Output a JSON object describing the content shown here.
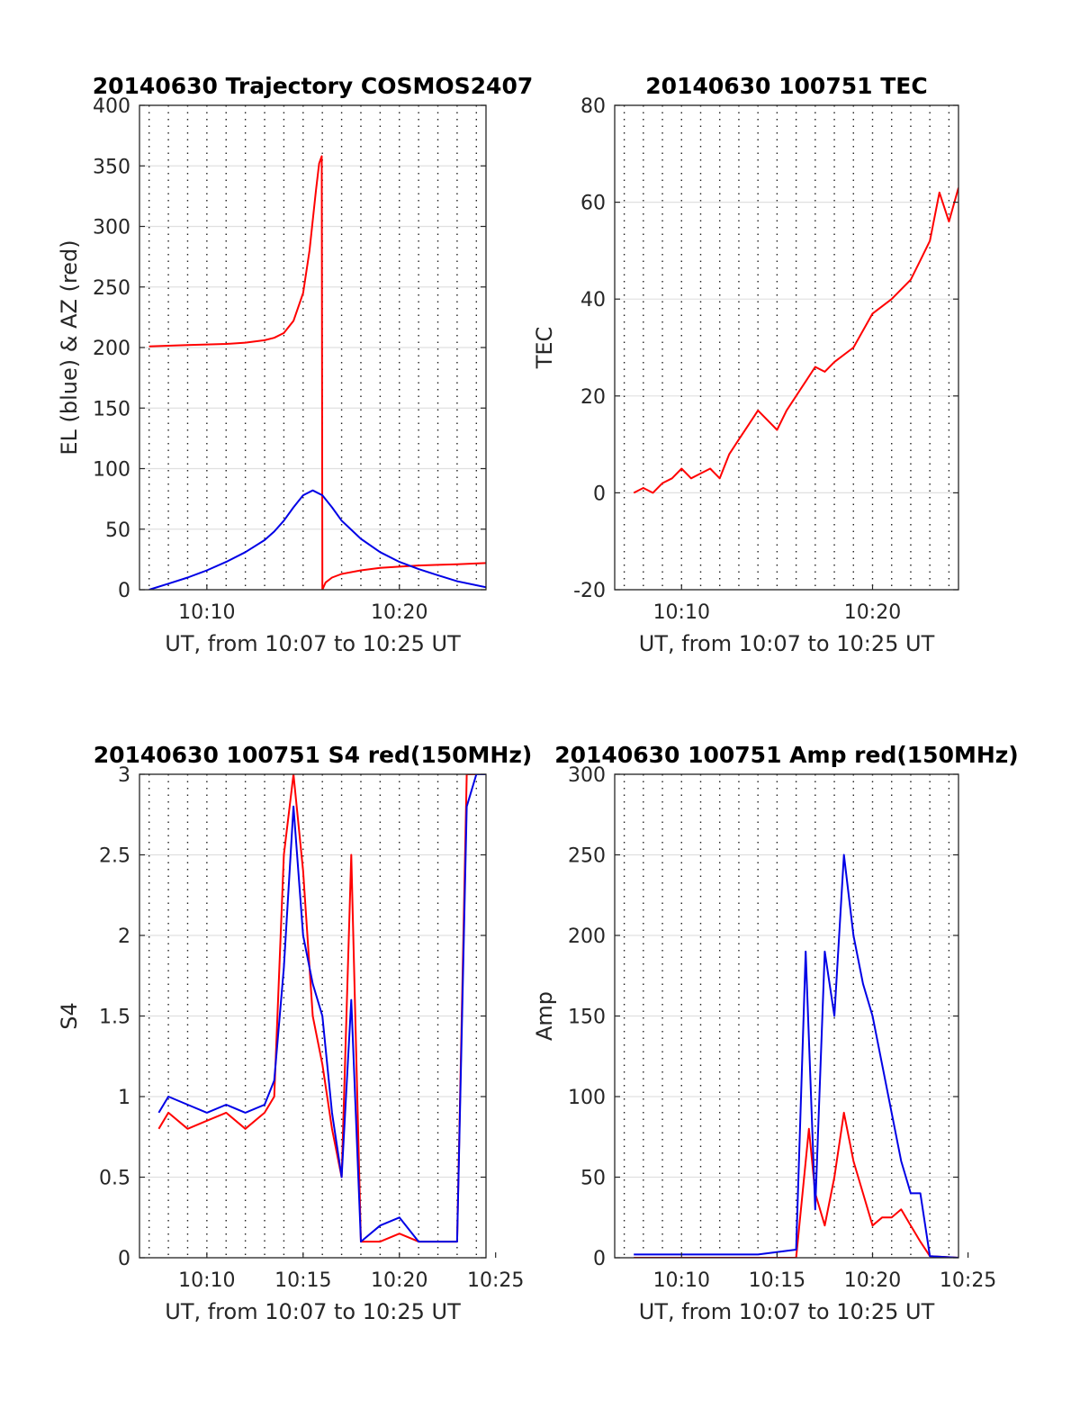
{
  "colors": {
    "red": "#ff0000",
    "blue": "#0000e6",
    "grid_h": "#e0e0e0",
    "grid_v": "#222222",
    "axis": "#262626"
  },
  "chart_data": [
    {
      "id": "trajectory",
      "type": "line",
      "title": "20140630 Trajectory COSMOS2407",
      "xlabel": "UT, from 10:07 to 10:25 UT",
      "ylabel": "EL (blue) & AZ (red)",
      "xlim": [
        "10:06:30",
        "10:24:30"
      ],
      "ylim": [
        0,
        400
      ],
      "yticks": [
        0,
        50,
        100,
        150,
        200,
        250,
        300,
        350,
        400
      ],
      "xticks": [
        {
          "t": "10:10",
          "label": "10:10"
        },
        {
          "t": "10:20",
          "label": "10:20"
        }
      ],
      "grid": true,
      "series": [
        {
          "color": "red",
          "x": [
            "10:07:00",
            "10:08",
            "10:09",
            "10:10",
            "10:11",
            "10:12",
            "10:13",
            "10:13:30",
            "10:14",
            "10:14:30",
            "10:15",
            "10:15:20",
            "10:15:40",
            "10:15:50",
            "10:15:58",
            "10:16:00",
            "10:16:10",
            "10:16:30",
            "10:17",
            "10:18",
            "10:19",
            "10:20",
            "10:21",
            "10:22",
            "10:23",
            "10:24:30"
          ],
          "values": [
            201,
            201.5,
            202,
            202.5,
            203,
            204,
            206,
            208,
            212,
            222,
            245,
            280,
            330,
            352,
            358,
            0,
            6,
            10,
            13,
            16,
            18,
            19,
            20,
            20.5,
            21,
            22
          ]
        },
        {
          "color": "blue",
          "x": [
            "10:07:00",
            "10:08",
            "10:09",
            "10:10",
            "10:11",
            "10:12",
            "10:13",
            "10:13:30",
            "10:14",
            "10:14:30",
            "10:15",
            "10:15:30",
            "10:16",
            "10:16:30",
            "10:17",
            "10:18",
            "10:19",
            "10:20",
            "10:21",
            "10:22",
            "10:23",
            "10:24:30"
          ],
          "values": [
            0,
            5,
            10,
            16,
            23,
            31,
            41,
            48,
            57,
            68,
            78,
            82,
            78,
            68,
            57,
            42,
            31,
            23,
            17,
            12,
            7,
            2
          ]
        }
      ]
    },
    {
      "id": "tec",
      "type": "line",
      "title": "20140630 100751 TEC",
      "xlabel": "UT, from 10:07 to 10:25 UT",
      "ylabel": "TEC",
      "xlim": [
        "10:06:30",
        "10:24:30"
      ],
      "ylim": [
        -20,
        80
      ],
      "yticks": [
        -20,
        0,
        20,
        40,
        60,
        80
      ],
      "xticks": [
        {
          "t": "10:10",
          "label": "10:10"
        },
        {
          "t": "10:20",
          "label": "10:20"
        }
      ],
      "grid": true,
      "series": [
        {
          "color": "red",
          "x": [
            "10:07:30",
            "10:08",
            "10:08:30",
            "10:09",
            "10:09:30",
            "10:10",
            "10:10:30",
            "10:11",
            "10:11:30",
            "10:12",
            "10:12:30",
            "10:13",
            "10:13:30",
            "10:14",
            "10:14:30",
            "10:15",
            "10:15:30",
            "10:16",
            "10:16:30",
            "10:17",
            "10:17:30",
            "10:18",
            "10:19",
            "10:20",
            "10:21",
            "10:22",
            "10:22:30",
            "10:23",
            "10:23:30",
            "10:24",
            "10:24:30"
          ],
          "values": [
            0,
            1,
            0,
            2,
            3,
            5,
            3,
            4,
            5,
            3,
            8,
            11,
            14,
            17,
            15,
            13,
            17,
            20,
            23,
            26,
            25,
            27,
            30,
            37,
            40,
            44,
            48,
            52,
            62,
            56,
            63
          ]
        }
      ]
    },
    {
      "id": "s4",
      "type": "line",
      "title": "20140630 100751 S4 red(150MHz)",
      "xlabel": "UT, from 10:07 to 10:25 UT",
      "ylabel": "S4",
      "xlim": [
        "10:06:30",
        "10:24:30"
      ],
      "ylim": [
        0,
        3
      ],
      "yticks": [
        0,
        0.5,
        1,
        1.5,
        2,
        2.5,
        3
      ],
      "xticks": [
        {
          "t": "10:10",
          "label": "10:10"
        },
        {
          "t": "10:15",
          "label": "10:15"
        },
        {
          "t": "10:20",
          "label": "10:20"
        },
        {
          "t": "10:25",
          "label": "10:25"
        }
      ],
      "grid": true,
      "series": [
        {
          "color": "red",
          "x": [
            "10:07:30",
            "10:08",
            "10:09",
            "10:10",
            "10:11",
            "10:12",
            "10:13",
            "10:13:30",
            "10:14",
            "10:14:30",
            "10:15",
            "10:15:30",
            "10:16",
            "10:16:30",
            "10:17",
            "10:17:30",
            "10:18",
            "10:19",
            "10:20",
            "10:21",
            "10:22",
            "10:23",
            "10:23:30",
            "10:24",
            "10:24:30"
          ],
          "values": [
            0.8,
            0.9,
            0.8,
            0.85,
            0.9,
            0.8,
            0.9,
            1.0,
            2.5,
            3.0,
            2.4,
            1.5,
            1.2,
            0.8,
            0.5,
            2.5,
            0.1,
            0.1,
            0.15,
            0.1,
            0.1,
            0.1,
            3.0,
            3.0,
            3.0
          ]
        },
        {
          "color": "blue",
          "x": [
            "10:07:30",
            "10:08",
            "10:09",
            "10:10",
            "10:11",
            "10:12",
            "10:13",
            "10:13:30",
            "10:14",
            "10:14:30",
            "10:15",
            "10:15:30",
            "10:16",
            "10:16:30",
            "10:17",
            "10:17:30",
            "10:18",
            "10:19",
            "10:20",
            "10:21",
            "10:22",
            "10:23",
            "10:23:30",
            "10:24",
            "10:24:30"
          ],
          "values": [
            0.9,
            1.0,
            0.95,
            0.9,
            0.95,
            0.9,
            0.95,
            1.1,
            1.8,
            2.8,
            2.0,
            1.7,
            1.5,
            0.9,
            0.5,
            1.6,
            0.1,
            0.2,
            0.25,
            0.1,
            0.1,
            0.1,
            2.8,
            3.0,
            3.0
          ]
        }
      ]
    },
    {
      "id": "amp",
      "type": "line",
      "title": "20140630 100751 Amp red(150MHz)",
      "xlabel": "UT, from 10:07 to 10:25 UT",
      "ylabel": "Amp",
      "xlim": [
        "10:06:30",
        "10:24:30"
      ],
      "ylim": [
        0,
        300
      ],
      "yticks": [
        0,
        50,
        100,
        150,
        200,
        250,
        300
      ],
      "xticks": [
        {
          "t": "10:10",
          "label": "10:10"
        },
        {
          "t": "10:15",
          "label": "10:15"
        },
        {
          "t": "10:20",
          "label": "10:20"
        },
        {
          "t": "10:25",
          "label": "10:25"
        }
      ],
      "grid": true,
      "series": [
        {
          "color": "red",
          "x": [
            "10:07:30",
            "10:10",
            "10:14",
            "10:16",
            "10:16:40",
            "10:17",
            "10:17:30",
            "10:18",
            "10:18:30",
            "10:19",
            "10:19:30",
            "10:20",
            "10:20:30",
            "10:21",
            "10:21:30",
            "10:22",
            "10:22:30",
            "10:23",
            "10:24:30"
          ],
          "values": [
            0,
            0,
            0,
            0,
            80,
            40,
            20,
            50,
            90,
            60,
            40,
            20,
            25,
            25,
            30,
            20,
            10,
            1,
            0
          ]
        },
        {
          "color": "blue",
          "x": [
            "10:07:30",
            "10:10",
            "10:14",
            "10:16",
            "10:16:30",
            "10:17",
            "10:17:30",
            "10:18",
            "10:18:30",
            "10:19",
            "10:19:30",
            "10:20",
            "10:20:30",
            "10:21",
            "10:21:30",
            "10:22",
            "10:22:30",
            "10:23",
            "10:24:30"
          ],
          "values": [
            2,
            2,
            2,
            5,
            190,
            30,
            190,
            150,
            250,
            200,
            170,
            150,
            120,
            90,
            60,
            40,
            40,
            1,
            0
          ]
        }
      ]
    }
  ]
}
